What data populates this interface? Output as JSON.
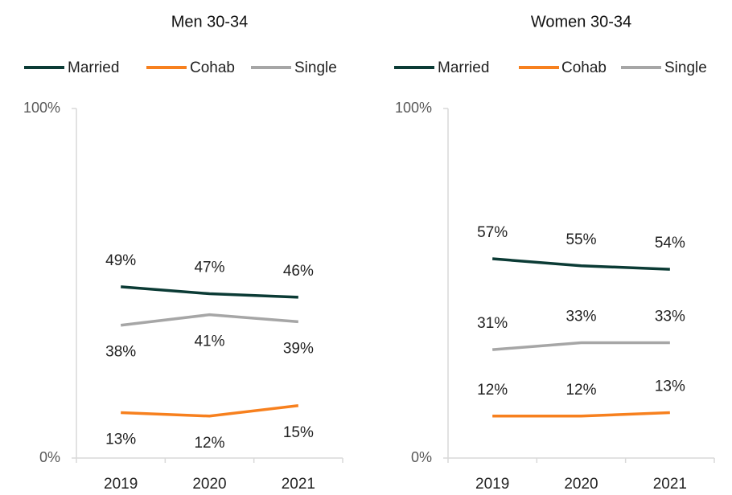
{
  "chart_data": [
    {
      "type": "line",
      "title": "Men 30-34",
      "categories": [
        "2019",
        "2020",
        "2021"
      ],
      "series": [
        {
          "name": "Married",
          "color": "#0b3b35",
          "values": [
            49,
            47,
            46
          ],
          "value_labels": [
            "49%",
            "47%",
            "46%"
          ]
        },
        {
          "name": "Cohab",
          "color": "#f7801e",
          "values": [
            13,
            12,
            15
          ],
          "value_labels": [
            "13%",
            "12%",
            "15%"
          ]
        },
        {
          "name": "Single",
          "color": "#a6a6a6",
          "values": [
            38,
            41,
            39
          ],
          "value_labels": [
            "38%",
            "41%",
            "39%"
          ]
        }
      ],
      "ylim": [
        0,
        100
      ],
      "yticks": [
        {
          "value": 0,
          "label": "0%"
        },
        {
          "value": 100,
          "label": "100%"
        }
      ]
    },
    {
      "type": "line",
      "title": "Women 30-34",
      "categories": [
        "2019",
        "2020",
        "2021"
      ],
      "series": [
        {
          "name": "Married",
          "color": "#0b3b35",
          "values": [
            57,
            55,
            54
          ],
          "value_labels": [
            "57%",
            "55%",
            "54%"
          ]
        },
        {
          "name": "Cohab",
          "color": "#f7801e",
          "values": [
            12,
            12,
            13
          ],
          "value_labels": [
            "12%",
            "12%",
            "13%"
          ]
        },
        {
          "name": "Single",
          "color": "#a6a6a6",
          "values": [
            31,
            33,
            33
          ],
          "value_labels": [
            "31%",
            "33%",
            "33%"
          ]
        }
      ],
      "ylim": [
        0,
        100
      ],
      "yticks": [
        {
          "value": 0,
          "label": "0%"
        },
        {
          "value": 100,
          "label": "100%"
        }
      ]
    }
  ]
}
